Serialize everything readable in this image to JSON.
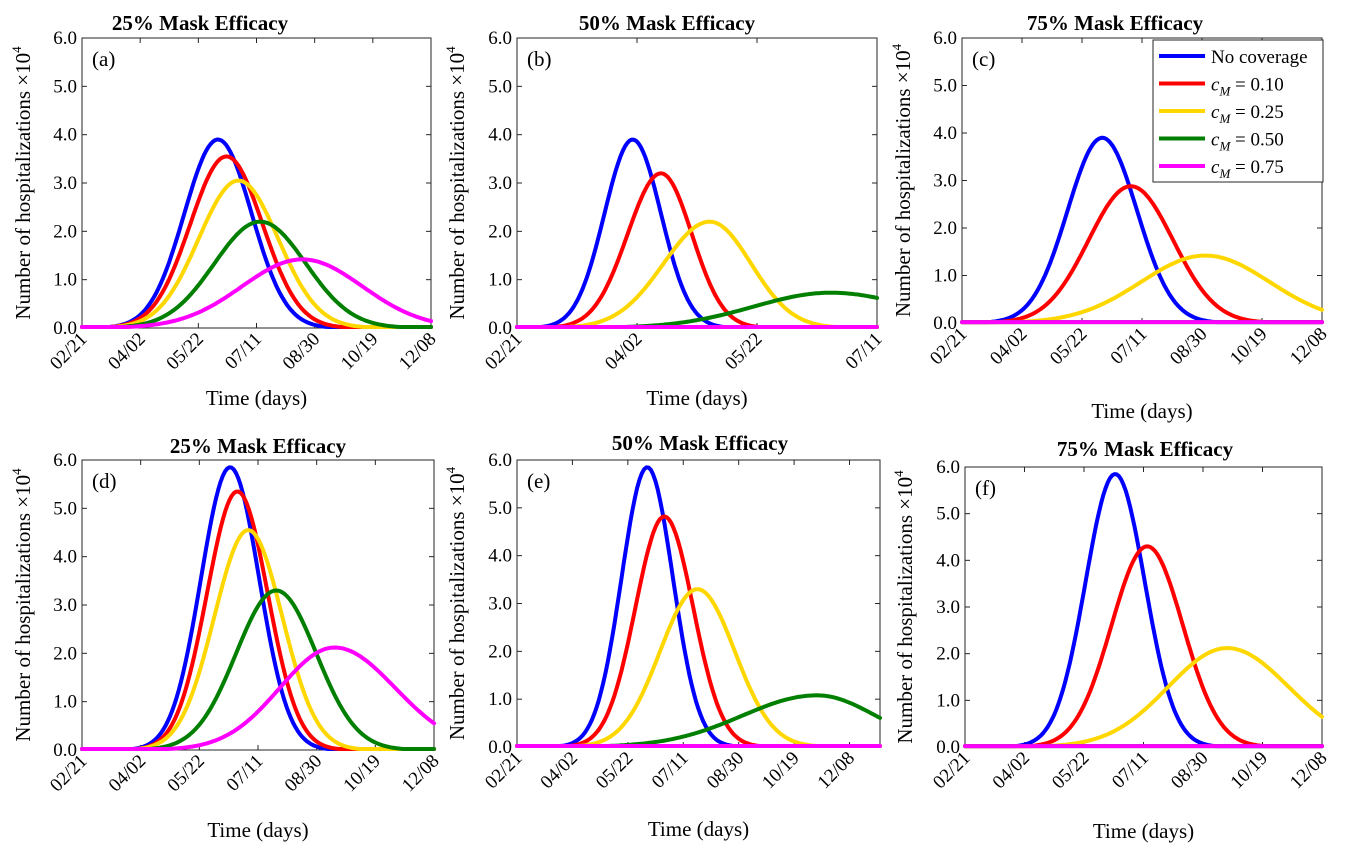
{
  "chart_data": [
    {
      "type": "line",
      "tag": "(a)",
      "title": "25% Mask Efficacy",
      "xlabel": "Time (days)",
      "ylabel": "Number of hospitalizations",
      "xticks": [
        "02/21",
        "04/02",
        "05/22",
        "07/11",
        "08/30",
        "10/19",
        "12/08"
      ],
      "xlim": [
        0,
        290
      ],
      "yticks": [
        "0.0",
        "1.0",
        "2.0",
        "3.0",
        "4.0",
        "5.0",
        "6.0"
      ],
      "ylim": [
        0,
        6
      ],
      "y_multiplier": "×10",
      "series": [
        {
          "name": "No coverage",
          "peak_x": 113,
          "peak_y": 3.9,
          "wl": 28,
          "wr": 28
        },
        {
          "name": "c_M = 0.10",
          "peak_x": 120,
          "peak_y": 3.55,
          "wl": 30,
          "wr": 30
        },
        {
          "name": "c_M = 0.25",
          "peak_x": 130,
          "peak_y": 3.05,
          "wl": 33,
          "wr": 33
        },
        {
          "name": "c_M = 0.50",
          "peak_x": 148,
          "peak_y": 2.2,
          "wl": 38,
          "wr": 38
        },
        {
          "name": "c_M = 0.75",
          "peak_x": 183,
          "peak_y": 1.42,
          "wl": 50,
          "wr": 50
        }
      ]
    },
    {
      "type": "line",
      "tag": "(b)",
      "title": "50% Mask Efficacy",
      "xlabel": "Time (days)",
      "ylabel": "Number of hospitalizations",
      "xticks": [
        "02/21",
        "04/02",
        "05/22",
        "07/11"
      ],
      "xlim": [
        0,
        140
      ],
      "yticks": [
        "0.0",
        "1.0",
        "2.0",
        "3.0",
        "4.0",
        "5.0",
        "6.0"
      ],
      "ylim": [
        0,
        6
      ],
      "y_multiplier": "×10",
      "series": [
        {
          "name": "No coverage",
          "peak_x": 45,
          "peak_y": 3.9,
          "wl": 11,
          "wr": 11
        },
        {
          "name": "c_M = 0.10",
          "peak_x": 56,
          "peak_y": 3.2,
          "wl": 13,
          "wr": 12
        },
        {
          "name": "c_M = 0.25",
          "peak_x": 75,
          "peak_y": 2.2,
          "wl": 18,
          "wr": 16
        },
        {
          "name": "c_M = 0.50",
          "peak_x": 122,
          "peak_y": 0.73,
          "wl": 30,
          "wr": 32
        },
        {
          "name": "c_M = 0.75",
          "peak_x": 70,
          "peak_y": 0.0,
          "wl": 20,
          "wr": 20
        }
      ]
    },
    {
      "type": "line",
      "tag": "(c)",
      "title": "75% Mask Efficacy",
      "xlabel": "Time (days)",
      "ylabel": "Number of hospitalizations",
      "xticks": [
        "02/21",
        "04/02",
        "05/22",
        "07/11",
        "08/30",
        "10/19",
        "12/08"
      ],
      "xlim": [
        0,
        290
      ],
      "yticks": [
        "0.0",
        "1.0",
        "2.0",
        "3.0",
        "4.0",
        "5.0",
        "6.0"
      ],
      "ylim": [
        0,
        6
      ],
      "y_multiplier": "×10",
      "legend": {
        "position": "top-right",
        "items": [
          {
            "label": "No coverage",
            "color": "#0000ff"
          },
          {
            "label": "c_M = 0.10",
            "color": "#ff0000"
          },
          {
            "label": "c_M = 0.25",
            "color": "#ffd700"
          },
          {
            "label": "c_M = 0.50",
            "color": "#007f00"
          },
          {
            "label": "c_M = 0.75",
            "color": "#ff00ff"
          }
        ]
      },
      "series": [
        {
          "name": "No coverage",
          "peak_x": 113,
          "peak_y": 3.9,
          "wl": 28,
          "wr": 28
        },
        {
          "name": "c_M = 0.10",
          "peak_x": 136,
          "peak_y": 2.88,
          "wl": 34,
          "wr": 34
        },
        {
          "name": "c_M = 0.25",
          "peak_x": 196,
          "peak_y": 1.42,
          "wl": 52,
          "wr": 52
        },
        {
          "name": "c_M = 0.50",
          "peak_x": 150,
          "peak_y": 0.0,
          "wl": 40,
          "wr": 40
        },
        {
          "name": "c_M = 0.75",
          "peak_x": 150,
          "peak_y": 0.0,
          "wl": 40,
          "wr": 40
        }
      ]
    },
    {
      "type": "line",
      "tag": "(d)",
      "title": "25% Mask Efficacy",
      "xlabel": "Time (days)",
      "ylabel": "Number of hospitalizations",
      "xticks": [
        "02/21",
        "04/02",
        "05/22",
        "07/11",
        "08/30",
        "10/19",
        "12/08"
      ],
      "xlim": [
        0,
        290
      ],
      "yticks": [
        "0.0",
        "1.0",
        "2.0",
        "3.0",
        "4.0",
        "5.0",
        "6.0"
      ],
      "ylim": [
        0,
        6
      ],
      "y_multiplier": "×10",
      "series": [
        {
          "name": "No coverage",
          "peak_x": 122,
          "peak_y": 5.85,
          "wl": 24,
          "wr": 24
        },
        {
          "name": "c_M = 0.10",
          "peak_x": 128,
          "peak_y": 5.35,
          "wl": 25,
          "wr": 25
        },
        {
          "name": "c_M = 0.25",
          "peak_x": 137,
          "peak_y": 4.55,
          "wl": 28,
          "wr": 28
        },
        {
          "name": "c_M = 0.50",
          "peak_x": 160,
          "peak_y": 3.3,
          "wl": 33,
          "wr": 33
        },
        {
          "name": "c_M = 0.75",
          "peak_x": 208,
          "peak_y": 2.12,
          "wl": 45,
          "wr": 50
        }
      ]
    },
    {
      "type": "line",
      "tag": "(e)",
      "title": "50% Mask Efficacy",
      "xlabel": "Time (days)",
      "ylabel": "Number of hospitalizations",
      "xticks": [
        "02/21",
        "04/02",
        "05/22",
        "07/11",
        "08/30",
        "10/19",
        "12/08"
      ],
      "xlim": [
        0,
        340
      ],
      "yticks": [
        "0.0",
        "1.0",
        "2.0",
        "3.0",
        "4.0",
        "5.0",
        "6.0"
      ],
      "ylim": [
        0,
        6
      ],
      "y_multiplier": "×10",
      "series": [
        {
          "name": "No coverage",
          "peak_x": 122,
          "peak_y": 5.85,
          "wl": 24,
          "wr": 24
        },
        {
          "name": "c_M = 0.10",
          "peak_x": 138,
          "peak_y": 4.82,
          "wl": 27,
          "wr": 27
        },
        {
          "name": "c_M = 0.25",
          "peak_x": 169,
          "peak_y": 3.3,
          "wl": 35,
          "wr": 35
        },
        {
          "name": "c_M = 0.50",
          "peak_x": 281,
          "peak_y": 1.08,
          "wl": 70,
          "wr": 55
        },
        {
          "name": "c_M = 0.75",
          "peak_x": 170,
          "peak_y": 0.0,
          "wl": 40,
          "wr": 40
        }
      ]
    },
    {
      "type": "line",
      "tag": "(f)",
      "title": "75% Mask Efficacy",
      "xlabel": "Time (days)",
      "ylabel": "Number of hospitalizations",
      "xticks": [
        "02/21",
        "04/02",
        "05/22",
        "07/11",
        "08/30",
        "10/19",
        "12/08"
      ],
      "xlim": [
        0,
        290
      ],
      "yticks": [
        "0.0",
        "1.0",
        "2.0",
        "3.0",
        "4.0",
        "5.0",
        "6.0"
      ],
      "ylim": [
        0,
        6
      ],
      "y_multiplier": "×10",
      "series": [
        {
          "name": "No coverage",
          "peak_x": 122,
          "peak_y": 5.85,
          "wl": 24,
          "wr": 24
        },
        {
          "name": "c_M = 0.10",
          "peak_x": 148,
          "peak_y": 4.3,
          "wl": 29,
          "wr": 29
        },
        {
          "name": "c_M = 0.25",
          "peak_x": 213,
          "peak_y": 2.12,
          "wl": 48,
          "wr": 50
        },
        {
          "name": "c_M = 0.50",
          "peak_x": 150,
          "peak_y": 0.0,
          "wl": 40,
          "wr": 40
        },
        {
          "name": "c_M = 0.75",
          "peak_x": 150,
          "peak_y": 0.0,
          "wl": 40,
          "wr": 40
        }
      ]
    }
  ],
  "colors": {
    "No coverage": "#0000ff",
    "c_M = 0.10": "#ff0000",
    "c_M = 0.25": "#ffd700",
    "c_M = 0.50": "#007f00",
    "c_M = 0.75": "#ff00ff"
  }
}
